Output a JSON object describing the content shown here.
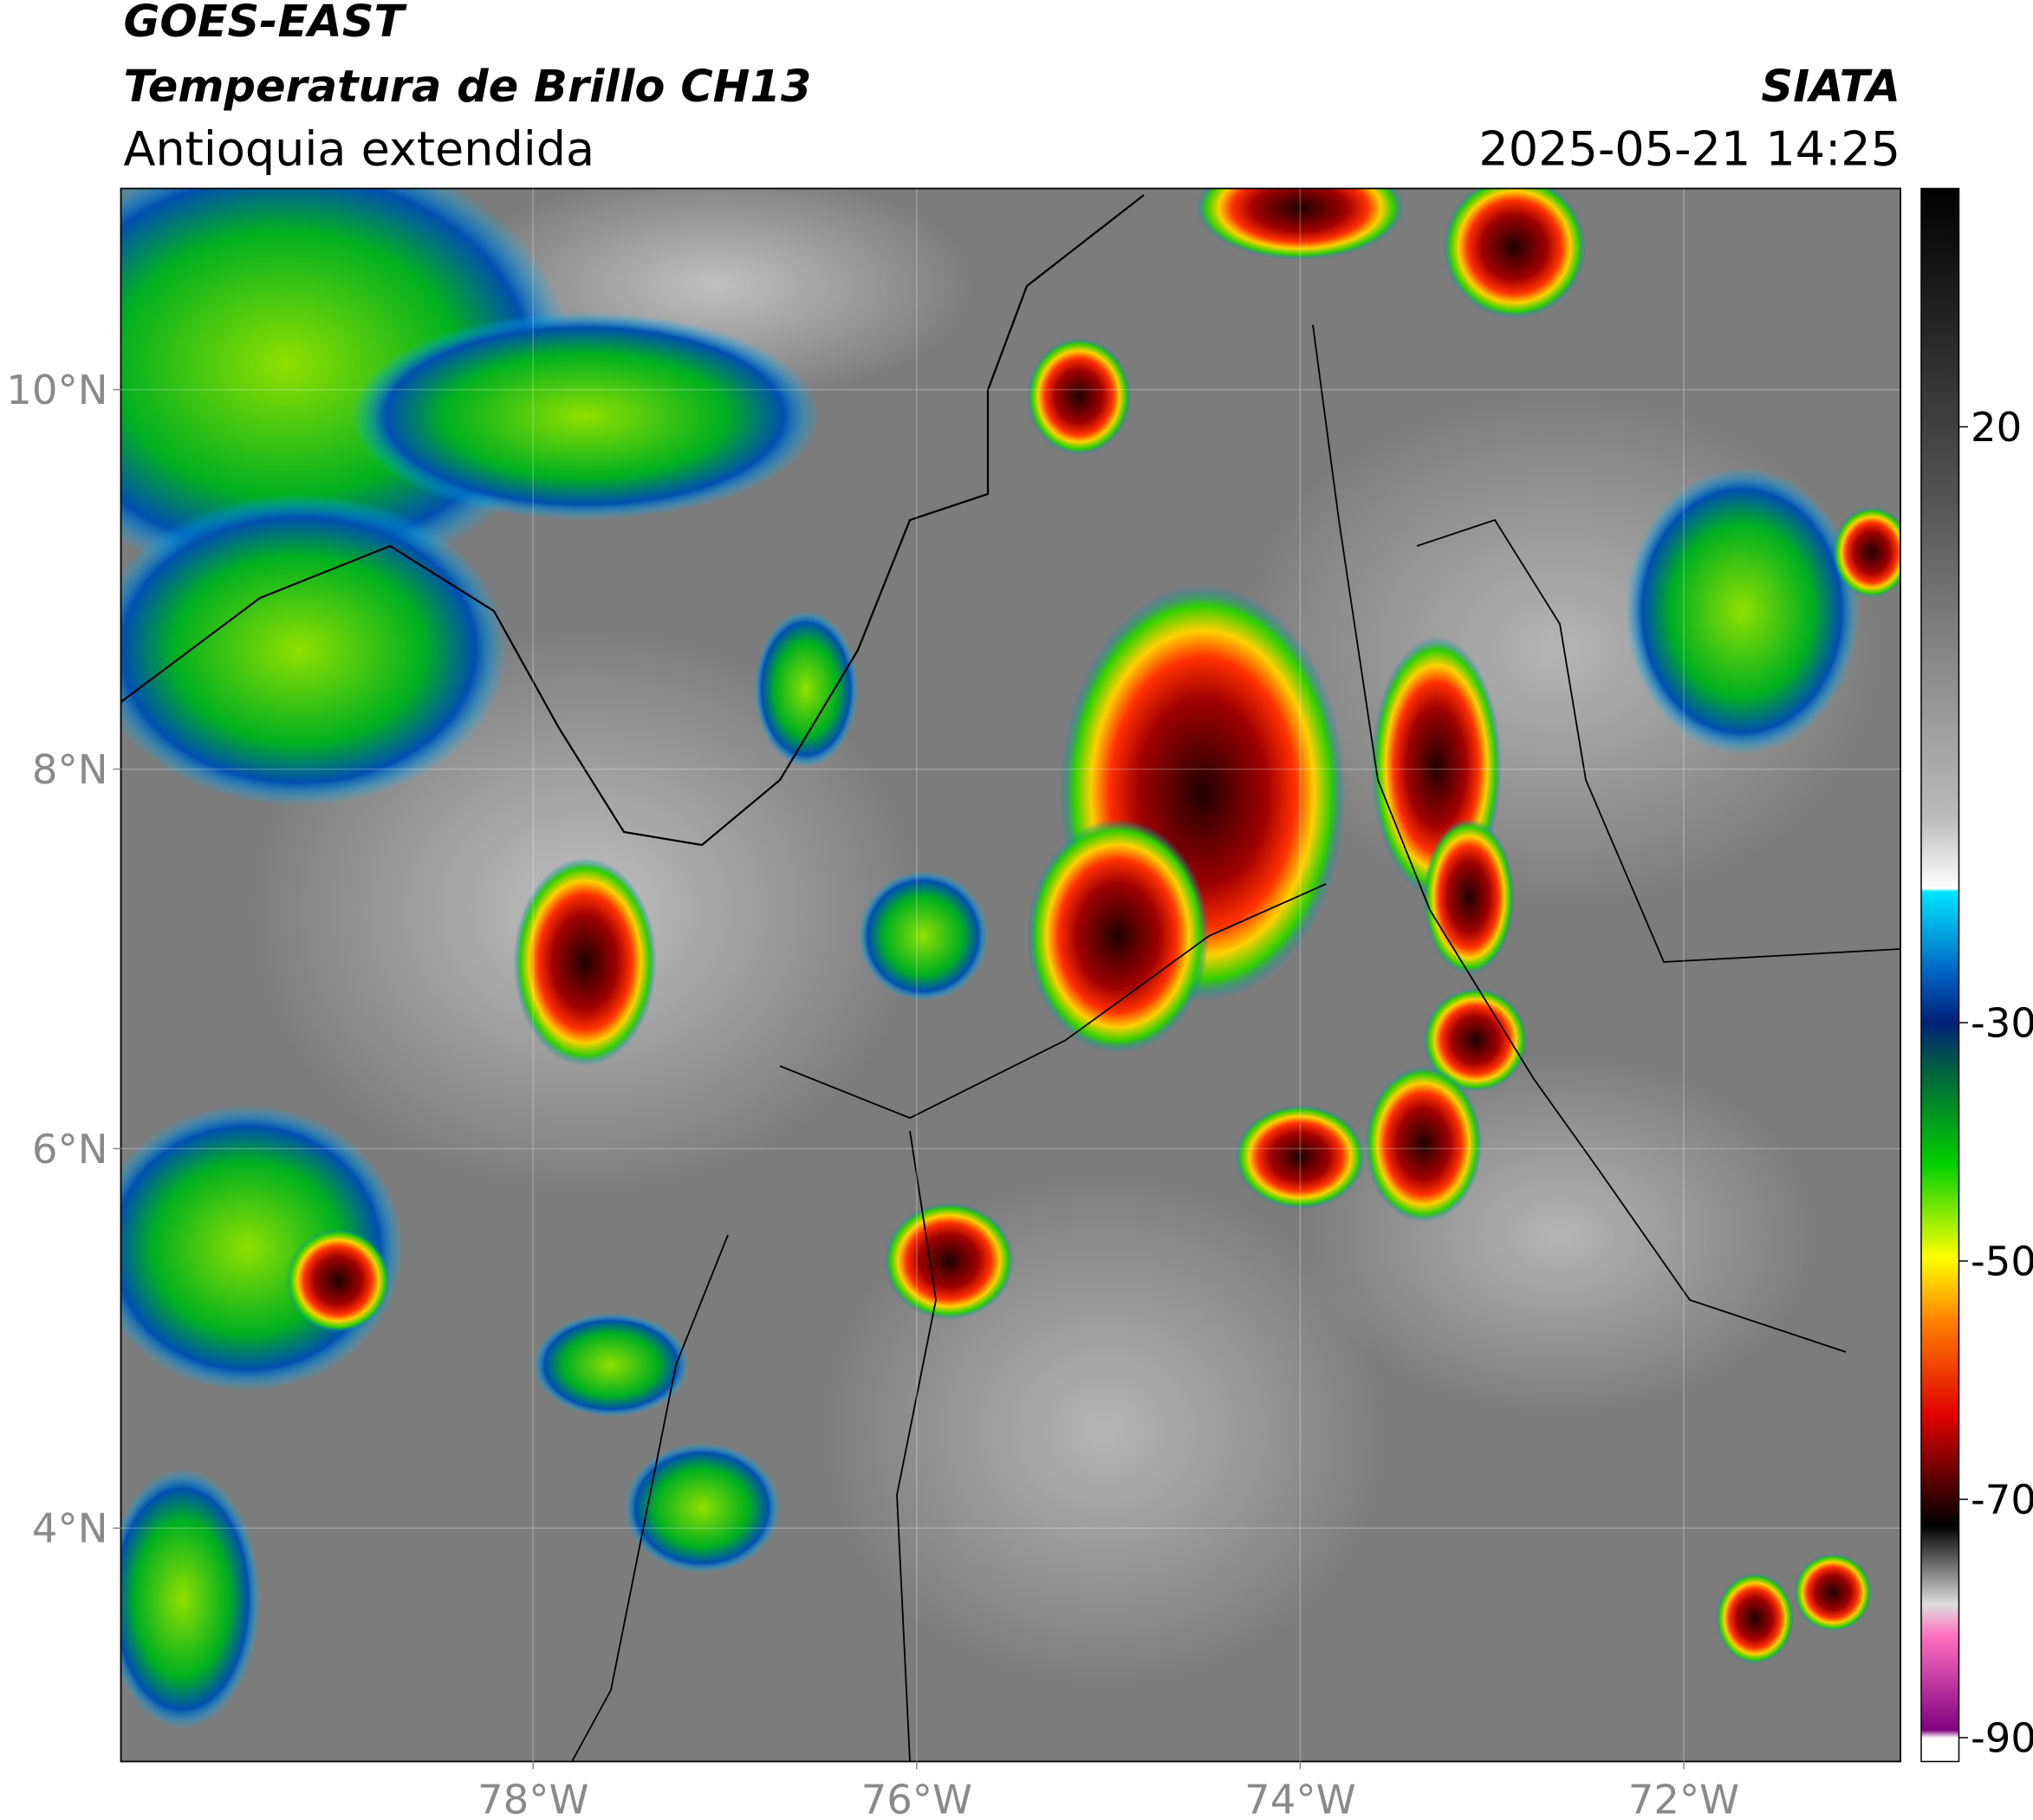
{
  "header": {
    "title": "GOES-EAST",
    "subtitle": "Temperatura de Brillo CH13",
    "region": "Antioquia extendida",
    "source": "SIATA",
    "datetime": "2025-05-21 14:25"
  },
  "map": {
    "xlim": [
      -80.15,
      -70.87
    ],
    "ylim": [
      2.77,
      11.06
    ],
    "xticks": [
      {
        "value": -78,
        "label": "78°W"
      },
      {
        "value": -76,
        "label": "76°W"
      },
      {
        "value": -74,
        "label": "74°W"
      },
      {
        "value": -72,
        "label": "72°W"
      }
    ],
    "yticks": [
      {
        "value": 10,
        "label": "10°N"
      },
      {
        "value": 8,
        "label": "8°N"
      },
      {
        "value": 6,
        "label": "6°N"
      },
      {
        "value": 4,
        "label": "4°N"
      }
    ]
  },
  "colorbar": {
    "lim": [
      -92,
      40
    ],
    "ticks": [
      20,
      -30,
      -50,
      -70,
      -90
    ]
  }
}
